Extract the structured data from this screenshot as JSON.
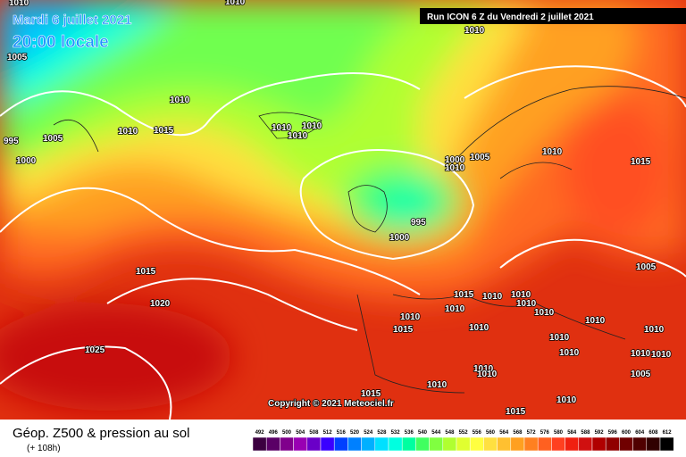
{
  "header": {
    "date": "Mardi 6 juillet 2021",
    "time": "20:00 locale",
    "run": "Run ICON 6 Z du Vendredi 2 juillet 2021"
  },
  "copyright": "Copyright © 2021 Meteociel.fr",
  "footer": {
    "title": "Géop. Z500 & pression au sol",
    "lead": "(+ 108h)"
  },
  "isobars": [
    "1010",
    "1010",
    "1010",
    "1005",
    "1010",
    "1010",
    "1015",
    "1005",
    "995",
    "1000",
    "1010",
    "1010",
    "1010",
    "1000",
    "1005",
    "1010",
    "1010",
    "1015",
    "995",
    "1000",
    "1015",
    "1020",
    "1025",
    "1015",
    "1010",
    "1010",
    "1010",
    "1010",
    "1010",
    "1010",
    "1015",
    "1010",
    "1010",
    "1010",
    "1010",
    "1005",
    "1010",
    "1010",
    "1010",
    "1005",
    "1010",
    "1010",
    "1010",
    "1015",
    "1010",
    "1015"
  ],
  "legend": [
    {
      "label": 492,
      "color": "#3c0040"
    },
    {
      "label": 496,
      "color": "#5a0066"
    },
    {
      "label": 500,
      "color": "#80008c"
    },
    {
      "label": 504,
      "color": "#9900b3"
    },
    {
      "label": 508,
      "color": "#6a00c8"
    },
    {
      "label": 512,
      "color": "#3a00ff"
    },
    {
      "label": 516,
      "color": "#0040ff"
    },
    {
      "label": 520,
      "color": "#0080ff"
    },
    {
      "label": 524,
      "color": "#00b0ff"
    },
    {
      "label": 528,
      "color": "#00e0ff"
    },
    {
      "label": 532,
      "color": "#00ffe0"
    },
    {
      "label": 536,
      "color": "#00ffa0"
    },
    {
      "label": 540,
      "color": "#40ff60"
    },
    {
      "label": 544,
      "color": "#80ff40"
    },
    {
      "label": 548,
      "color": "#b0ff30"
    },
    {
      "label": 552,
      "color": "#e0ff30"
    },
    {
      "label": 556,
      "color": "#ffff40"
    },
    {
      "label": 560,
      "color": "#ffe040"
    },
    {
      "label": 564,
      "color": "#ffc030"
    },
    {
      "label": 568,
      "color": "#ffa020"
    },
    {
      "label": 572,
      "color": "#ff8020"
    },
    {
      "label": 576,
      "color": "#ff6020"
    },
    {
      "label": 580,
      "color": "#ff4020"
    },
    {
      "label": 584,
      "color": "#f02010"
    },
    {
      "label": 588,
      "color": "#d01010"
    },
    {
      "label": 592,
      "color": "#b00000"
    },
    {
      "label": 596,
      "color": "#900000"
    },
    {
      "label": 600,
      "color": "#700000"
    },
    {
      "label": 604,
      "color": "#500000"
    },
    {
      "label": 608,
      "color": "#300000"
    },
    {
      "label": 612,
      "color": "#000000"
    }
  ]
}
